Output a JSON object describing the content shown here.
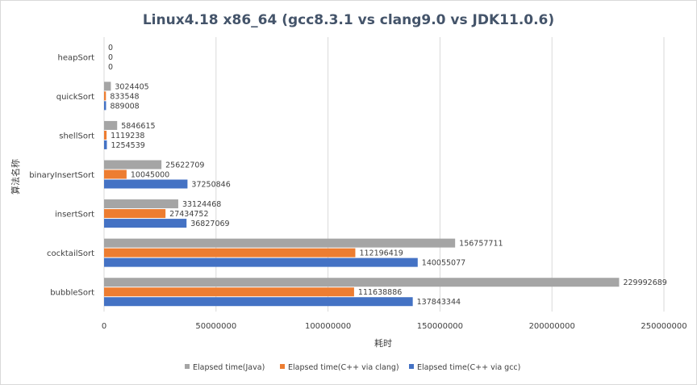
{
  "chart_data": {
    "type": "bar",
    "orientation": "horizontal",
    "title": "Linux4.18 x86_64 (gcc8.3.1 vs clang9.0 vs JDK11.0.6)",
    "xlabel": "耗时",
    "ylabel": "算法名称",
    "categories": [
      "heapSort",
      "quickSort",
      "shellSort",
      "binaryInsertSort",
      "insertSort",
      "cocktailSort",
      "bubbleSort"
    ],
    "series": [
      {
        "name": "Elapsed time(Java)",
        "color": "#a5a5a5",
        "values": [
          0,
          3024405,
          5846615,
          25622709,
          33124468,
          156757711,
          229992689
        ]
      },
      {
        "name": "Elapsed time(C++ via clang)",
        "color": "#ed7d31",
        "values": [
          0,
          833548,
          1119238,
          10045000,
          27434752,
          112196419,
          111638886
        ]
      },
      {
        "name": "Elapsed time(C++ via gcc)",
        "color": "#4472c4",
        "values": [
          0,
          889008,
          1254539,
          37250846,
          36827069,
          140055077,
          137843344
        ]
      }
    ],
    "xlim": [
      0,
      250000000
    ],
    "xticks": [
      "0",
      "50000000",
      "100000000",
      "150000000",
      "200000000",
      "250000000"
    ],
    "grid": true,
    "legend_position": "bottom"
  }
}
